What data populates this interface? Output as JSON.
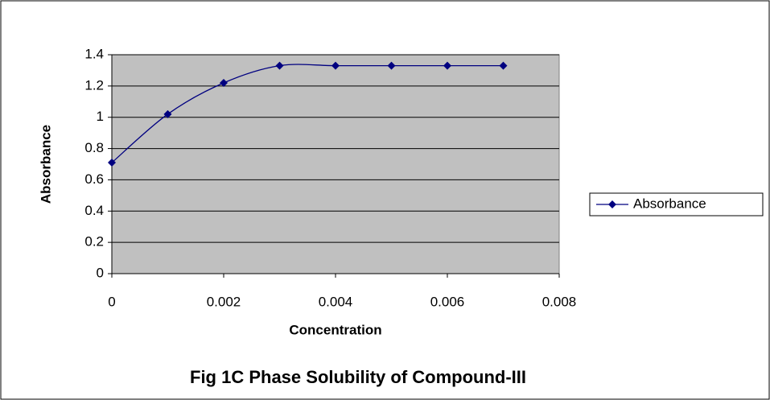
{
  "chart_data": {
    "type": "line",
    "title": "Fig 1C Phase Solubility of Compound-III",
    "xlabel": "Concentration",
    "ylabel": "Absorbance",
    "x": [
      0,
      0.001,
      0.002,
      0.003,
      0.004,
      0.005,
      0.006,
      0.007
    ],
    "series": [
      {
        "name": "Absorbance",
        "color": "#000080",
        "values": [
          0.71,
          1.02,
          1.22,
          1.33,
          1.33,
          1.33,
          1.33,
          1.33
        ]
      }
    ],
    "xlim": [
      0,
      0.008
    ],
    "xticks": [
      0,
      0.002,
      0.004,
      0.006,
      0.008
    ],
    "ylim": [
      0,
      1.4
    ],
    "yticks": [
      0,
      0.2,
      0.4,
      0.6,
      0.8,
      1,
      1.2,
      1.4
    ],
    "grid": true,
    "smooth": true,
    "marker": "diamond",
    "legend": "right",
    "plot_background": "#c0c0c0"
  }
}
